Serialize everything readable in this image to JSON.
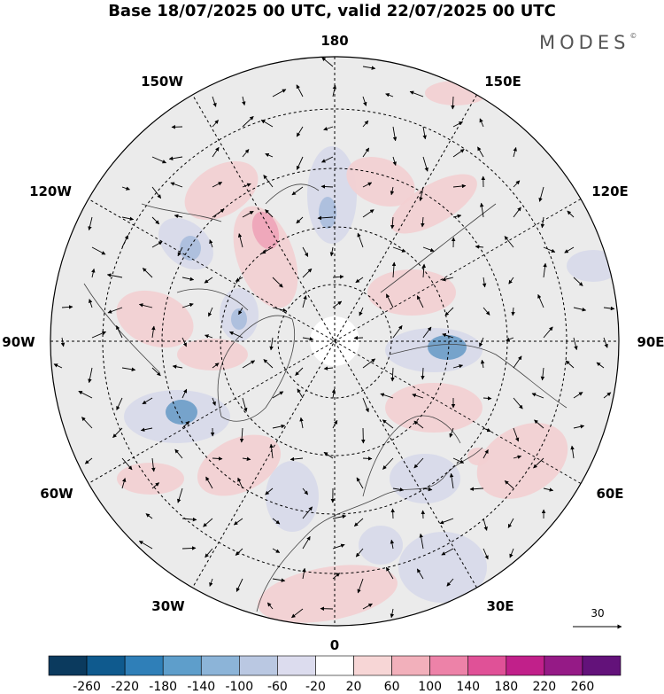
{
  "title": "Base 18/07/2025 00 UTC, valid 22/07/2025 00 UTC",
  "brand": "MODES",
  "brand_mark": "©",
  "longitude_labels": {
    "lon_180": "180",
    "lon_150E": "150E",
    "lon_120E": "120E",
    "lon_90E": "90E",
    "lon_60E": "60E",
    "lon_30E": "30E",
    "lon_0": "0",
    "lon_30W": "30W",
    "lon_60W": "60W",
    "lon_90W": "90W",
    "lon_120W": "120W",
    "lon_150W": "150W"
  },
  "reference_vector_label": "30",
  "colorbar": {
    "tick_labels": [
      "-260",
      "-220",
      "-180",
      "-140",
      "-100",
      "-60",
      "-20",
      "20",
      "60",
      "100",
      "140",
      "180",
      "220",
      "260"
    ],
    "colors": [
      "#0b3a5e",
      "#0f5a8e",
      "#2f7fb8",
      "#5e9ecb",
      "#8cb4d8",
      "#bac8e2",
      "#dcdcee",
      "#ffffff",
      "#f7d6d6",
      "#f2b0bb",
      "#ed82a8",
      "#e05197",
      "#c1208a",
      "#951a86",
      "#63127a"
    ]
  },
  "map": {
    "projection": "north polar stereographic",
    "ocean_color": "#ffffff",
    "land_color": "#e9e9e9"
  }
}
